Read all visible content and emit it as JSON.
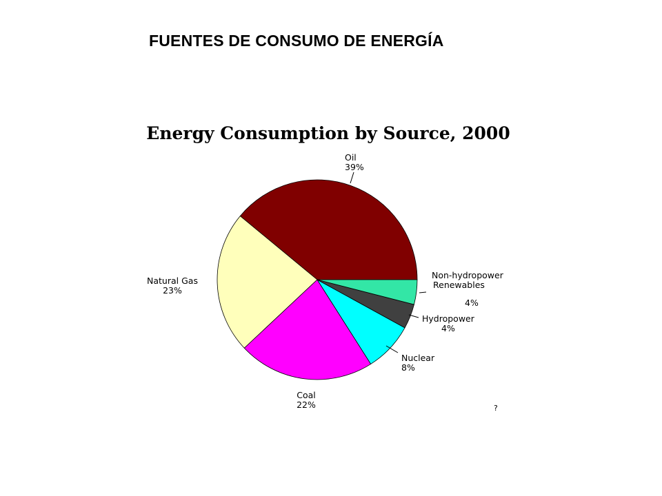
{
  "slide": {
    "title": "FUENTES DE CONSUMO DE ENERGÍA",
    "footnote_mark": "?"
  },
  "chart_data": {
    "type": "pie",
    "title": "Energy Consumption by Source, 2000",
    "slices": [
      {
        "label": "Oil",
        "label_lines": [
          "Oil"
        ],
        "value_label": "39%",
        "value": 39,
        "color": "#800000"
      },
      {
        "label": "Natural Gas",
        "label_lines": [
          "Natural Gas"
        ],
        "value_label": "23%",
        "value": 23,
        "color": "#FFFFBB"
      },
      {
        "label": "Coal",
        "label_lines": [
          "Coal"
        ],
        "value_label": "22%",
        "value": 22,
        "color": "#FF00FF"
      },
      {
        "label": "Nuclear",
        "label_lines": [
          "Nuclear"
        ],
        "value_label": "8%",
        "value": 8,
        "color": "#00FFFF"
      },
      {
        "label": "Hydropower",
        "label_lines": [
          "Hydropower"
        ],
        "value_label": "4%",
        "value": 4,
        "color": "#404040"
      },
      {
        "label": "Non-hydropower Renewables",
        "label_lines": [
          "Non-hydropower",
          "Renewables"
        ],
        "value_label": "4%",
        "value": 4,
        "color": "#33E6A6"
      }
    ]
  }
}
